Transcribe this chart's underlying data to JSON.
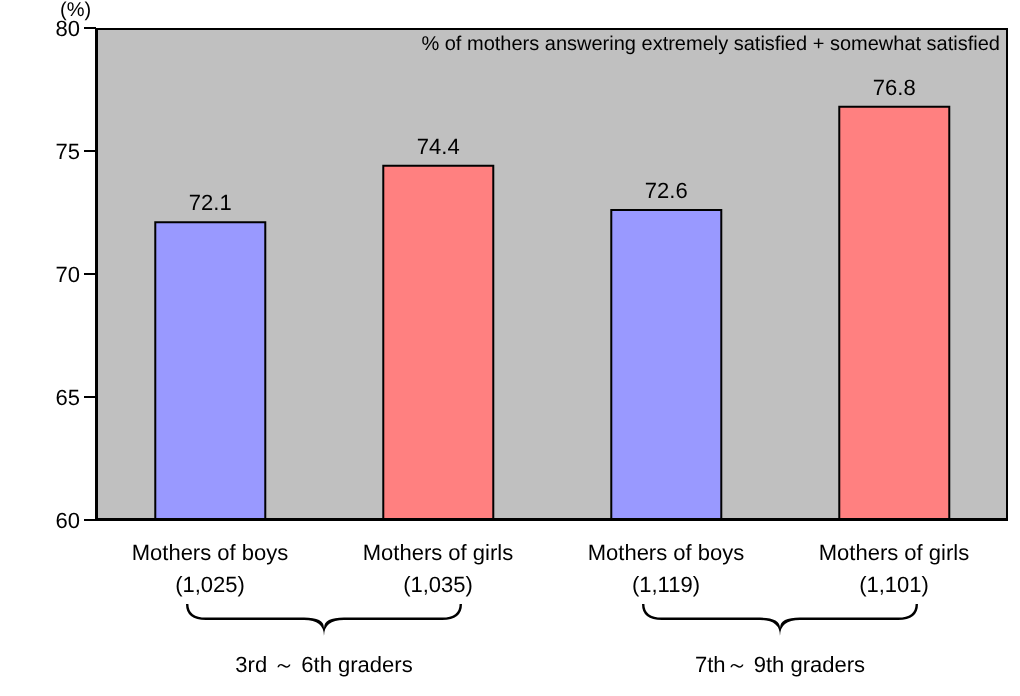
{
  "chart_data": {
    "type": "bar",
    "ylabel": "(%)",
    "categories": [
      "Mothers of boys\n(1,025)",
      "Mothers of girls\n(1,035)",
      "Mothers of boys\n(1,119)",
      "Mothers of girls\n(1,101)"
    ],
    "values": [
      72.1,
      74.4,
      72.6,
      76.8
    ],
    "colors": [
      "#9999ff",
      "#ff8080",
      "#9999ff",
      "#ff8080"
    ],
    "ylim": [
      60,
      80
    ],
    "yticks": [
      60,
      65,
      70,
      75,
      80
    ],
    "data_labels": true,
    "grid": false,
    "annotations": [
      "% of mothers answering extremely satisfied + somewhat satisfied",
      "3rd ～ 6th graders",
      "7th～ 9th graders"
    ]
  }
}
